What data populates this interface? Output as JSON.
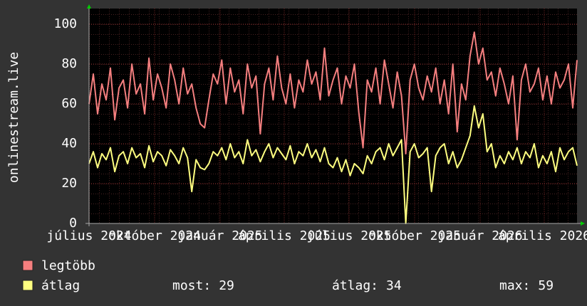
{
  "chart_data": {
    "type": "line",
    "y_label": "onlinestream.live",
    "ylim": [
      0,
      108
    ],
    "yticks": [
      0,
      20,
      40,
      60,
      80,
      100
    ],
    "xlim": [
      0,
      685
    ],
    "xticks": [
      {
        "value": 0,
        "label": "július 2024"
      },
      {
        "value": 92,
        "label": "október 2024"
      },
      {
        "value": 184,
        "label": "január 2025"
      },
      {
        "value": 274,
        "label": "április 2025"
      },
      {
        "value": 365,
        "label": "július 2025"
      },
      {
        "value": 457,
        "label": "október 2025"
      },
      {
        "value": 549,
        "label": "január 2026"
      },
      {
        "value": 639,
        "label": "április 2026"
      }
    ],
    "grid": true,
    "series": [
      {
        "name": "legtöbb",
        "color": "#f57f7f",
        "values": [
          60,
          75,
          55,
          70,
          62,
          78,
          52,
          68,
          72,
          58,
          80,
          65,
          70,
          55,
          83,
          62,
          75,
          68,
          58,
          80,
          72,
          60,
          78,
          65,
          70,
          58,
          50,
          48,
          62,
          75,
          70,
          82,
          60,
          78,
          66,
          72,
          55,
          80,
          68,
          74,
          45,
          70,
          78,
          62,
          84,
          68,
          60,
          75,
          58,
          72,
          66,
          82,
          70,
          76,
          62,
          88,
          64,
          72,
          78,
          60,
          74,
          68,
          80,
          56,
          38,
          72,
          66,
          78,
          60,
          82,
          70,
          58,
          76,
          64,
          35,
          72,
          80,
          68,
          62,
          74,
          66,
          78,
          60,
          72,
          55,
          80,
          46,
          70,
          62,
          84,
          96,
          80,
          88,
          72,
          76,
          64,
          78,
          70,
          60,
          74,
          42,
          72,
          80,
          66,
          70,
          78,
          62,
          74,
          60,
          76,
          68,
          72,
          80,
          58,
          82
        ]
      },
      {
        "name": "átlag",
        "color": "#ffff80",
        "values": [
          30,
          36,
          28,
          35,
          32,
          38,
          26,
          34,
          36,
          30,
          38,
          33,
          35,
          28,
          39,
          31,
          36,
          34,
          29,
          37,
          34,
          30,
          38,
          33,
          16,
          32,
          28,
          27,
          30,
          36,
          34,
          38,
          32,
          40,
          33,
          36,
          30,
          42,
          34,
          37,
          31,
          36,
          40,
          33,
          38,
          35,
          32,
          39,
          30,
          36,
          34,
          40,
          33,
          37,
          31,
          38,
          30,
          28,
          33,
          26,
          32,
          24,
          30,
          28,
          25,
          34,
          30,
          36,
          38,
          32,
          40,
          34,
          38,
          42,
          0,
          36,
          40,
          33,
          35,
          38,
          16,
          34,
          38,
          40,
          30,
          36,
          28,
          32,
          38,
          44,
          59,
          48,
          55,
          36,
          40,
          28,
          34,
          30,
          36,
          32,
          38,
          30,
          36,
          33,
          40,
          28,
          34,
          30,
          36,
          26,
          38,
          32,
          36,
          38,
          29
        ]
      }
    ],
    "stats": [
      {
        "label": "most:",
        "value": 29
      },
      {
        "label": "átlag:",
        "value": 34
      },
      {
        "label": "max:",
        "value": 59
      }
    ]
  }
}
